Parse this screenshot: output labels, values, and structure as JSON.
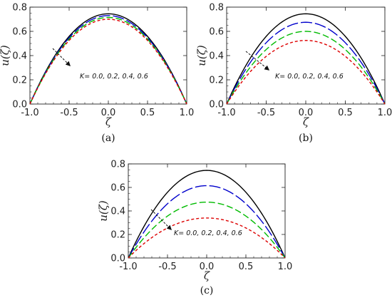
{
  "chart_data": [
    {
      "type": "line",
      "panel_label": "(a)",
      "xlabel": "ζ",
      "ylabel": "u(ζ)",
      "xlim": [
        -1.0,
        1.0
      ],
      "ylim": [
        0.0,
        0.8
      ],
      "xticks": [
        "-1.0",
        "-0.5",
        "0.0",
        "0.5",
        "1.0"
      ],
      "yticks": [
        "0.0",
        "0.2",
        "0.4",
        "0.6",
        "0.8"
      ],
      "annotation": "K= 0.0, 0.2, 0.4, 0.6",
      "series": [
        {
          "K": 0.0,
          "peak": 0.745,
          "color": "#000000",
          "dash": "solid"
        },
        {
          "K": 0.2,
          "peak": 0.73,
          "color": "#0000cc",
          "dash": "long-dash"
        },
        {
          "K": 0.4,
          "peak": 0.715,
          "color": "#00bb00",
          "dash": "medium-dash"
        },
        {
          "K": 0.6,
          "peak": 0.7,
          "color": "#dd0000",
          "dash": "short-dash"
        }
      ]
    },
    {
      "type": "line",
      "panel_label": "(b)",
      "xlabel": "ζ",
      "ylabel": "u(ζ)",
      "xlim": [
        -1.0,
        1.0
      ],
      "ylim": [
        0.0,
        0.8
      ],
      "xticks": [
        "-1.0",
        "-0.5",
        "0.0",
        "0.5",
        "1.0"
      ],
      "yticks": [
        "0.0",
        "0.2",
        "0.4",
        "0.6",
        "0.8"
      ],
      "annotation": "K= 0.0, 0.2, 0.4, 0.6",
      "series": [
        {
          "K": 0.0,
          "peak": 0.745,
          "color": "#000000",
          "dash": "solid"
        },
        {
          "K": 0.2,
          "peak": 0.675,
          "color": "#0000cc",
          "dash": "long-dash"
        },
        {
          "K": 0.4,
          "peak": 0.6,
          "color": "#00bb00",
          "dash": "medium-dash"
        },
        {
          "K": 0.6,
          "peak": 0.525,
          "color": "#dd0000",
          "dash": "short-dash"
        }
      ]
    },
    {
      "type": "line",
      "panel_label": "(c)",
      "xlabel": "ζ",
      "ylabel": "u(ζ)",
      "xlim": [
        -1.0,
        1.0
      ],
      "ylim": [
        0.0,
        0.8
      ],
      "xticks": [
        "-1.0",
        "-0.5",
        "0.0",
        "0.5",
        "1.0"
      ],
      "yticks": [
        "0.0",
        "0.2",
        "0.4",
        "0.6",
        "0.8"
      ],
      "annotation": "K= 0.0, 0.2, 0.4, 0.6",
      "series": [
        {
          "K": 0.0,
          "peak": 0.745,
          "color": "#000000",
          "dash": "solid"
        },
        {
          "K": 0.2,
          "peak": 0.615,
          "color": "#0000cc",
          "dash": "long-dash"
        },
        {
          "K": 0.4,
          "peak": 0.475,
          "color": "#00bb00",
          "dash": "medium-dash"
        },
        {
          "K": 0.6,
          "peak": 0.34,
          "color": "#dd0000",
          "dash": "short-dash"
        }
      ]
    }
  ]
}
